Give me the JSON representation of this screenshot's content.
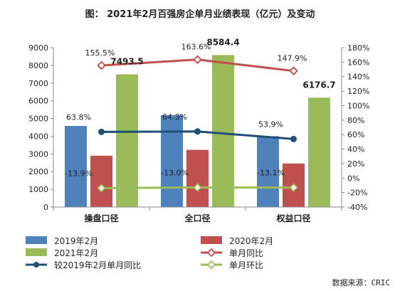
{
  "title": "图：  2021年2月百强房企单月业绩表现（亿元）及变动",
  "source": "数据来源：CRIC",
  "colors": {
    "bar2019": "#4f81bd",
    "bar2020": "#c0504d",
    "bar2021": "#9bbb59",
    "yoy": "#c0504d",
    "vs2019": "#1f4e79",
    "mom": "#9bbb59"
  },
  "chart_data": {
    "type": "bar",
    "categories": [
      "操盘口径",
      "全口径",
      "权益口径"
    ],
    "ylim": [
      0,
      9000
    ],
    "yticks": [
      0,
      1000,
      2000,
      3000,
      4000,
      5000,
      6000,
      7000,
      8000,
      9000
    ],
    "y2lim": [
      -40,
      180
    ],
    "y2ticks": [
      "-40%",
      "-20%",
      "0%",
      "20%",
      "40%",
      "60%",
      "80%",
      "100%",
      "120%",
      "140%",
      "160%",
      "180%"
    ],
    "y2tick_values": [
      -40,
      -20,
      0,
      20,
      40,
      60,
      80,
      100,
      120,
      140,
      160,
      180
    ],
    "bar_series": [
      {
        "name": "2019年2月",
        "values": [
          4580,
          5190,
          4000
        ],
        "labels": [
          "",
          "",
          ""
        ]
      },
      {
        "name": "2020年2月",
        "values": [
          2900,
          3230,
          2460
        ],
        "labels": [
          "",
          "",
          ""
        ]
      },
      {
        "name": "2021年2月",
        "values": [
          7493.5,
          8584.4,
          6176.7
        ],
        "labels": [
          "7493.5",
          "8584.4",
          "6176.7"
        ]
      }
    ],
    "line_series": [
      {
        "name": "单月同比",
        "values": [
          155.5,
          163.6,
          147.9
        ],
        "labels": [
          "155.5%",
          "163.6%",
          "147.9%"
        ]
      },
      {
        "name": "较2019年2月单月同比",
        "values": [
          63.8,
          64.3,
          53.9
        ],
        "labels": [
          "63.8%",
          "64.3%",
          "53.9%"
        ]
      },
      {
        "name": "单月环比",
        "values": [
          -13.9,
          -13.0,
          -13.1
        ],
        "labels": [
          "-13.9%",
          "-13.0%",
          "-13.1%"
        ]
      }
    ]
  }
}
